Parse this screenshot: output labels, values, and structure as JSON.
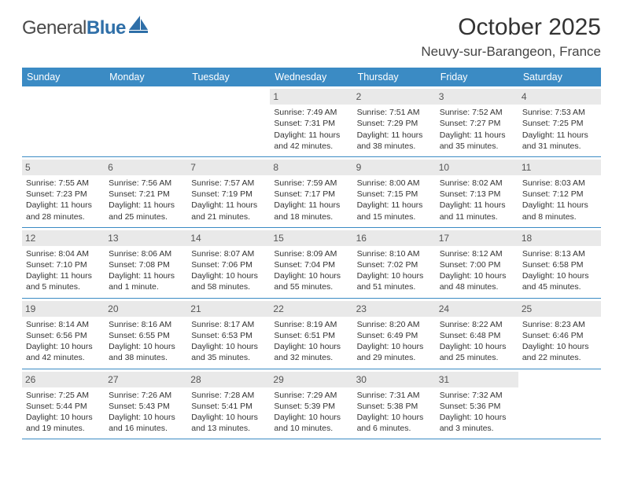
{
  "logo": {
    "text1": "General",
    "text2": "Blue"
  },
  "title": "October 2025",
  "location": "Neuvy-sur-Barangeon, France",
  "colors": {
    "header_bg": "#3b8bc4",
    "daynum_bg": "#e9e9e9",
    "rule": "#3b8bc4",
    "logo_blue": "#2f6fa8"
  },
  "dow": [
    "Sunday",
    "Monday",
    "Tuesday",
    "Wednesday",
    "Thursday",
    "Friday",
    "Saturday"
  ],
  "weeks": [
    [
      {
        "n": "",
        "sr": "",
        "ss": "",
        "dl": ""
      },
      {
        "n": "",
        "sr": "",
        "ss": "",
        "dl": ""
      },
      {
        "n": "",
        "sr": "",
        "ss": "",
        "dl": ""
      },
      {
        "n": "1",
        "sr": "Sunrise: 7:49 AM",
        "ss": "Sunset: 7:31 PM",
        "dl": "Daylight: 11 hours and 42 minutes."
      },
      {
        "n": "2",
        "sr": "Sunrise: 7:51 AM",
        "ss": "Sunset: 7:29 PM",
        "dl": "Daylight: 11 hours and 38 minutes."
      },
      {
        "n": "3",
        "sr": "Sunrise: 7:52 AM",
        "ss": "Sunset: 7:27 PM",
        "dl": "Daylight: 11 hours and 35 minutes."
      },
      {
        "n": "4",
        "sr": "Sunrise: 7:53 AM",
        "ss": "Sunset: 7:25 PM",
        "dl": "Daylight: 11 hours and 31 minutes."
      }
    ],
    [
      {
        "n": "5",
        "sr": "Sunrise: 7:55 AM",
        "ss": "Sunset: 7:23 PM",
        "dl": "Daylight: 11 hours and 28 minutes."
      },
      {
        "n": "6",
        "sr": "Sunrise: 7:56 AM",
        "ss": "Sunset: 7:21 PM",
        "dl": "Daylight: 11 hours and 25 minutes."
      },
      {
        "n": "7",
        "sr": "Sunrise: 7:57 AM",
        "ss": "Sunset: 7:19 PM",
        "dl": "Daylight: 11 hours and 21 minutes."
      },
      {
        "n": "8",
        "sr": "Sunrise: 7:59 AM",
        "ss": "Sunset: 7:17 PM",
        "dl": "Daylight: 11 hours and 18 minutes."
      },
      {
        "n": "9",
        "sr": "Sunrise: 8:00 AM",
        "ss": "Sunset: 7:15 PM",
        "dl": "Daylight: 11 hours and 15 minutes."
      },
      {
        "n": "10",
        "sr": "Sunrise: 8:02 AM",
        "ss": "Sunset: 7:13 PM",
        "dl": "Daylight: 11 hours and 11 minutes."
      },
      {
        "n": "11",
        "sr": "Sunrise: 8:03 AM",
        "ss": "Sunset: 7:12 PM",
        "dl": "Daylight: 11 hours and 8 minutes."
      }
    ],
    [
      {
        "n": "12",
        "sr": "Sunrise: 8:04 AM",
        "ss": "Sunset: 7:10 PM",
        "dl": "Daylight: 11 hours and 5 minutes."
      },
      {
        "n": "13",
        "sr": "Sunrise: 8:06 AM",
        "ss": "Sunset: 7:08 PM",
        "dl": "Daylight: 11 hours and 1 minute."
      },
      {
        "n": "14",
        "sr": "Sunrise: 8:07 AM",
        "ss": "Sunset: 7:06 PM",
        "dl": "Daylight: 10 hours and 58 minutes."
      },
      {
        "n": "15",
        "sr": "Sunrise: 8:09 AM",
        "ss": "Sunset: 7:04 PM",
        "dl": "Daylight: 10 hours and 55 minutes."
      },
      {
        "n": "16",
        "sr": "Sunrise: 8:10 AM",
        "ss": "Sunset: 7:02 PM",
        "dl": "Daylight: 10 hours and 51 minutes."
      },
      {
        "n": "17",
        "sr": "Sunrise: 8:12 AM",
        "ss": "Sunset: 7:00 PM",
        "dl": "Daylight: 10 hours and 48 minutes."
      },
      {
        "n": "18",
        "sr": "Sunrise: 8:13 AM",
        "ss": "Sunset: 6:58 PM",
        "dl": "Daylight: 10 hours and 45 minutes."
      }
    ],
    [
      {
        "n": "19",
        "sr": "Sunrise: 8:14 AM",
        "ss": "Sunset: 6:56 PM",
        "dl": "Daylight: 10 hours and 42 minutes."
      },
      {
        "n": "20",
        "sr": "Sunrise: 8:16 AM",
        "ss": "Sunset: 6:55 PM",
        "dl": "Daylight: 10 hours and 38 minutes."
      },
      {
        "n": "21",
        "sr": "Sunrise: 8:17 AM",
        "ss": "Sunset: 6:53 PM",
        "dl": "Daylight: 10 hours and 35 minutes."
      },
      {
        "n": "22",
        "sr": "Sunrise: 8:19 AM",
        "ss": "Sunset: 6:51 PM",
        "dl": "Daylight: 10 hours and 32 minutes."
      },
      {
        "n": "23",
        "sr": "Sunrise: 8:20 AM",
        "ss": "Sunset: 6:49 PM",
        "dl": "Daylight: 10 hours and 29 minutes."
      },
      {
        "n": "24",
        "sr": "Sunrise: 8:22 AM",
        "ss": "Sunset: 6:48 PM",
        "dl": "Daylight: 10 hours and 25 minutes."
      },
      {
        "n": "25",
        "sr": "Sunrise: 8:23 AM",
        "ss": "Sunset: 6:46 PM",
        "dl": "Daylight: 10 hours and 22 minutes."
      }
    ],
    [
      {
        "n": "26",
        "sr": "Sunrise: 7:25 AM",
        "ss": "Sunset: 5:44 PM",
        "dl": "Daylight: 10 hours and 19 minutes."
      },
      {
        "n": "27",
        "sr": "Sunrise: 7:26 AM",
        "ss": "Sunset: 5:43 PM",
        "dl": "Daylight: 10 hours and 16 minutes."
      },
      {
        "n": "28",
        "sr": "Sunrise: 7:28 AM",
        "ss": "Sunset: 5:41 PM",
        "dl": "Daylight: 10 hours and 13 minutes."
      },
      {
        "n": "29",
        "sr": "Sunrise: 7:29 AM",
        "ss": "Sunset: 5:39 PM",
        "dl": "Daylight: 10 hours and 10 minutes."
      },
      {
        "n": "30",
        "sr": "Sunrise: 7:31 AM",
        "ss": "Sunset: 5:38 PM",
        "dl": "Daylight: 10 hours and 6 minutes."
      },
      {
        "n": "31",
        "sr": "Sunrise: 7:32 AM",
        "ss": "Sunset: 5:36 PM",
        "dl": "Daylight: 10 hours and 3 minutes."
      },
      {
        "n": "",
        "sr": "",
        "ss": "",
        "dl": ""
      }
    ]
  ]
}
